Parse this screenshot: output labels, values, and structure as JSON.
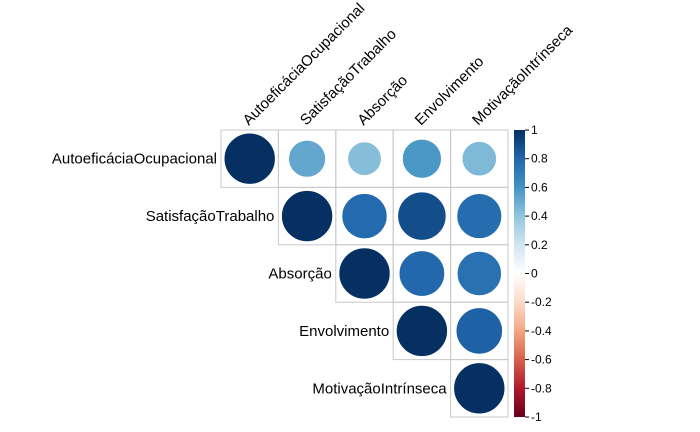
{
  "chart_data": {
    "type": "heatmap",
    "style": "corrplot-upper-circles",
    "variables": [
      "AutoeficáciaOcupacional",
      "SatisfaçãoTrabalho",
      "Absorção",
      "Envolvimento",
      "MotivaçãoIntrínseca"
    ],
    "matrix": [
      [
        1.0,
        0.52,
        0.43,
        0.58,
        0.45
      ],
      [
        0.52,
        1.0,
        0.78,
        0.89,
        0.77
      ],
      [
        0.43,
        0.78,
        1.0,
        0.79,
        0.75
      ],
      [
        0.58,
        0.89,
        0.79,
        1.0,
        0.82
      ],
      [
        0.45,
        0.77,
        0.75,
        0.82,
        1.0
      ]
    ],
    "colorbar": {
      "ticks": [
        "1",
        "0.8",
        "0.6",
        "0.4",
        "0.2",
        "0",
        "-0.2",
        "-0.4",
        "-0.6",
        "-0.8",
        "-1"
      ],
      "range": [
        -1,
        1
      ],
      "colors": [
        "#67001F",
        "#B2182B",
        "#D6604D",
        "#F4A582",
        "#FDDBC7",
        "#FFFFFF",
        "#D1E5F0",
        "#92C5DE",
        "#4393C3",
        "#2166AC",
        "#053061"
      ]
    }
  }
}
